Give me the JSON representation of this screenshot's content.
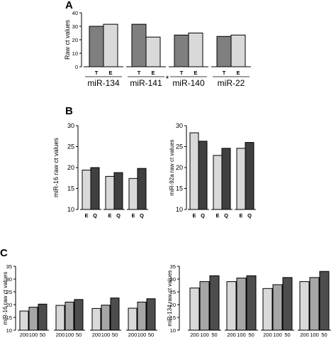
{
  "chart_data": [
    {
      "panel": "A",
      "type": "bar",
      "ylabel": "Raw ct values",
      "ylim": [
        0,
        40
      ],
      "yticks": [
        0,
        10,
        20,
        30,
        40
      ],
      "groups": [
        {
          "label": "miR-134",
          "categories": [
            "T",
            "E"
          ],
          "values": [
            30,
            31.5
          ]
        },
        {
          "label": "miR-141",
          "annotation": "*",
          "categories": [
            "T",
            "E"
          ],
          "values": [
            31.5,
            22
          ]
        },
        {
          "label": "miR-140",
          "categories": [
            "T",
            "E"
          ],
          "values": [
            23.5,
            25
          ]
        },
        {
          "label": "miR-22",
          "categories": [
            "T",
            "E"
          ],
          "values": [
            22.5,
            23.5
          ]
        }
      ],
      "colors": {
        "T": "#7f7f7f",
        "E": "#d9d9d9"
      }
    },
    {
      "panel": "B",
      "type": "bar",
      "ylabel": "miR-16 raw ct values",
      "ylim": [
        10,
        30
      ],
      "yticks": [
        10,
        15,
        20,
        25,
        30
      ],
      "groups": [
        {
          "categories": [
            "E",
            "Q"
          ],
          "values": [
            19.4,
            20
          ]
        },
        {
          "categories": [
            "E",
            "Q"
          ],
          "values": [
            17.9,
            18.8
          ]
        },
        {
          "categories": [
            "E",
            "Q"
          ],
          "values": [
            17.4,
            19.8
          ]
        }
      ],
      "colors": {
        "E": "#d9d9d9",
        "Q": "#404040"
      }
    },
    {
      "type": "bar",
      "ylabel": "miR-92a raw ct values",
      "ylim": [
        10,
        30
      ],
      "yticks": [
        10,
        15,
        20,
        25,
        30
      ],
      "groups": [
        {
          "categories": [
            "E",
            "Q"
          ],
          "values": [
            28.3,
            26.3
          ]
        },
        {
          "categories": [
            "E",
            "Q"
          ],
          "values": [
            22.9,
            24.6
          ]
        },
        {
          "categories": [
            "E",
            "Q"
          ],
          "values": [
            24.6,
            26
          ]
        }
      ],
      "colors": {
        "E": "#d9d9d9",
        "Q": "#404040"
      }
    },
    {
      "panel": "C",
      "type": "bar",
      "ylabel": "miR-16 raw ct values",
      "ylim": [
        10,
        35
      ],
      "yticks": [
        10,
        15,
        20,
        25,
        30,
        35
      ],
      "groups": [
        {
          "categories": [
            "200",
            "100",
            "50"
          ],
          "values": [
            17.5,
            19,
            20.2
          ]
        },
        {
          "categories": [
            "200",
            "100",
            "50"
          ],
          "values": [
            19.7,
            21,
            22
          ]
        },
        {
          "categories": [
            "200",
            "100",
            "50"
          ],
          "values": [
            18.5,
            19.8,
            22.6
          ]
        },
        {
          "categories": [
            "200",
            "100",
            "50"
          ],
          "values": [
            18.6,
            21,
            22.3
          ]
        }
      ],
      "colors": {
        "200": "#d9d9d9",
        "100": "#a6a6a6",
        "50": "#4d4d4d"
      }
    },
    {
      "type": "bar",
      "ylabel": "miR-134 raw ct values",
      "ylim": [
        10,
        35
      ],
      "yticks": [
        10,
        15,
        20,
        25,
        30,
        35
      ],
      "groups": [
        {
          "categories": [
            "200",
            "100",
            "50"
          ],
          "values": [
            26.5,
            29,
            31.3
          ]
        },
        {
          "categories": [
            "200",
            "100",
            "50"
          ],
          "values": [
            29,
            30.4,
            31.3
          ]
        },
        {
          "categories": [
            "200",
            "100",
            "50"
          ],
          "values": [
            26.3,
            27.8,
            30.6
          ]
        },
        {
          "categories": [
            "200",
            "100",
            "50"
          ],
          "values": [
            29,
            30.6,
            33
          ]
        }
      ],
      "colors": {
        "200": "#d9d9d9",
        "100": "#a6a6a6",
        "50": "#4d4d4d"
      }
    }
  ]
}
